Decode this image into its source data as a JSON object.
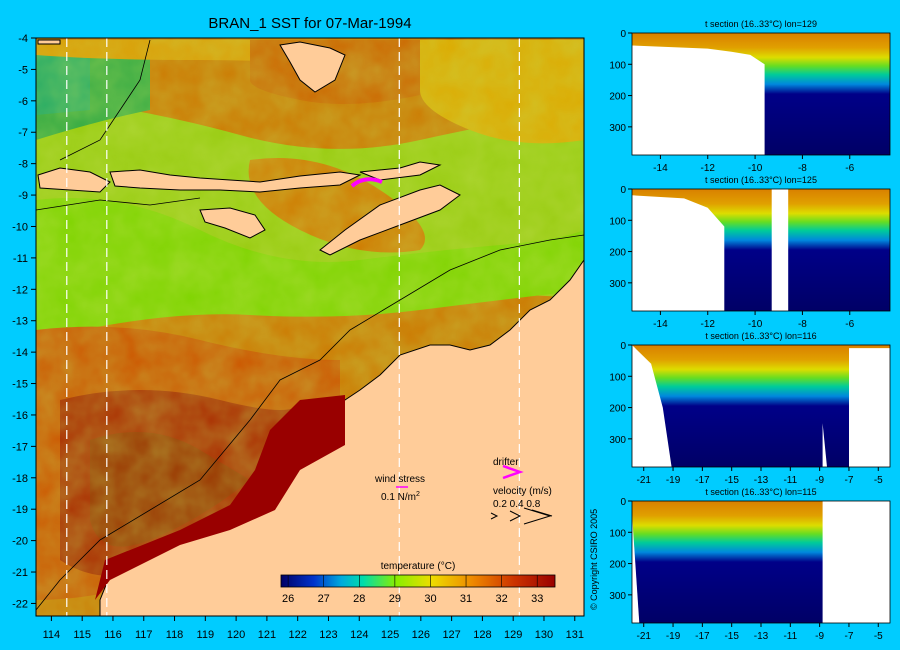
{
  "chart_data": [
    {
      "type": "heatmap",
      "title": "BRAN_1 SST for 07-Mar-1994",
      "x_ticks": [
        114,
        115,
        116,
        117,
        118,
        119,
        120,
        121,
        122,
        123,
        124,
        125,
        126,
        127,
        128,
        129,
        130,
        131
      ],
      "y_ticks": [
        -4,
        -5,
        -6,
        -7,
        -8,
        -9,
        -10,
        -11,
        -12,
        -13,
        -14,
        -15,
        -16,
        -17,
        -18,
        -19,
        -20,
        -21,
        -22
      ],
      "xlim": [
        113.5,
        131.3
      ],
      "ylim": [
        -22.4,
        -4
      ],
      "colorbar": {
        "label": "temperature (°C)",
        "ticks": [
          26,
          27,
          28,
          29,
          30,
          31,
          32,
          33
        ],
        "range": [
          25.8,
          33.5
        ]
      },
      "section_lines_lon": [
        114.5,
        115.8,
        125.3,
        129.2
      ],
      "legend": {
        "wind_stress_label": "wind stress",
        "wind_stress_value": "0.1 N/m",
        "wind_stress_exp": "2",
        "drifter_label": "drifter",
        "velocity_label": "velocity (m/s)",
        "velocity_ticks": "0.2 0.4 0.8"
      }
    },
    {
      "type": "heatmap",
      "title": "t section (16..33°C) lon=129",
      "x_ticks": [
        -14,
        -12,
        -10,
        -8,
        -6
      ],
      "y_ticks": [
        0,
        100,
        200,
        300
      ],
      "xlim": [
        -15.2,
        -4.3
      ],
      "ylim": [
        390,
        0
      ]
    },
    {
      "type": "heatmap",
      "title": "t section (16..33°C) lon=125",
      "x_ticks": [
        -14,
        -12,
        -10,
        -8,
        -6
      ],
      "y_ticks": [
        0,
        100,
        200,
        300
      ],
      "xlim": [
        -15.2,
        -4.3
      ],
      "ylim": [
        390,
        0
      ]
    },
    {
      "type": "heatmap",
      "title": "t section (16..33°C) lon=116",
      "x_ticks": [
        -21,
        -19,
        -17,
        -15,
        -13,
        -11,
        -9,
        -7,
        -5
      ],
      "y_ticks": [
        0,
        100,
        200,
        300
      ],
      "xlim": [
        -21.8,
        -4.2
      ],
      "ylim": [
        390,
        0
      ]
    },
    {
      "type": "heatmap",
      "title": "t section (16..33°C) lon=115",
      "x_ticks": [
        -21,
        -19,
        -17,
        -15,
        -13,
        -11,
        -9,
        -7,
        -5
      ],
      "y_ticks": [
        0,
        100,
        200,
        300
      ],
      "xlim": [
        -21.8,
        -4.2
      ],
      "ylim": [
        390,
        0
      ]
    }
  ],
  "copyright": "© Copyright CSIRO 2005",
  "colors": {
    "background": "#00ccff",
    "land": "#ffcc99",
    "deep": "#000066",
    "warm": "#990000",
    "drifter": "#ff00ff"
  }
}
